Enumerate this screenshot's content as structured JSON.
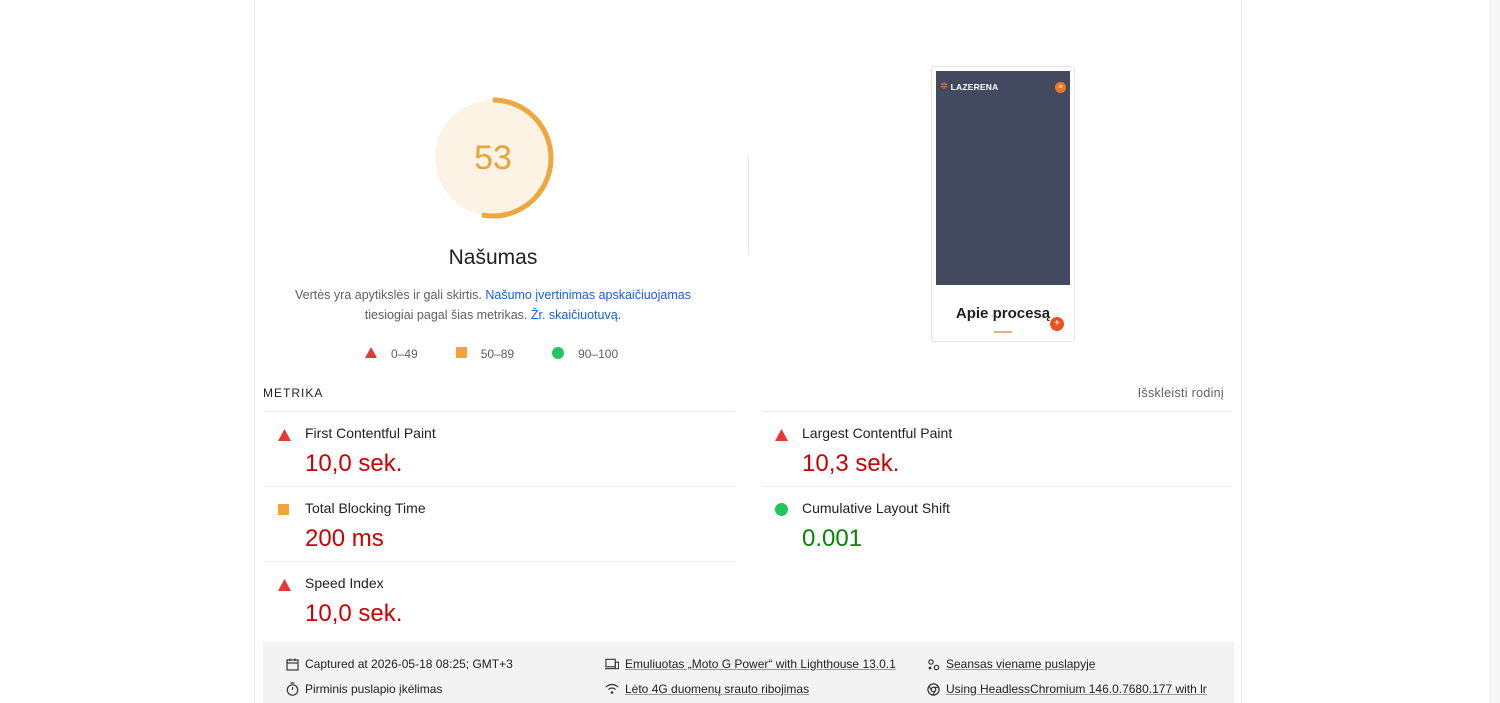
{
  "gauge": {
    "score": "53",
    "score_fraction": 0.53,
    "title": "Našumas",
    "desc_text": "Vertės yra apytikslės ir gali skirtis.",
    "desc_link1": "Našumo įvertinimas apskaičiuojamas",
    "desc_text2": "tiesiogiai pagal šias metrikas.",
    "desc_link2": "Žr. skaičiuotuvą.",
    "color": "#e8a33b",
    "bg_color": "#fdf3e4"
  },
  "legend": [
    {
      "icon": "red-triangle-icon",
      "label": "0–49",
      "color": "#e53935"
    },
    {
      "icon": "orange-square-icon",
      "label": "50–89",
      "color": "#f2a43a"
    },
    {
      "icon": "green-circle-icon",
      "label": "90–100",
      "color": "#22c55e"
    }
  ],
  "thumbnail": {
    "logo": "LAZERENA",
    "heading": "Apie procesą",
    "bg_color": "#434a5f",
    "accent": "#f0761f"
  },
  "metrics": {
    "header": "METRIKA",
    "toggle": "Išskleisti rodinį",
    "items": [
      {
        "name": "First Contentful Paint",
        "value": "10,0 sek.",
        "status": "fail"
      },
      {
        "name": "Largest Contentful Paint",
        "value": "10,3 sek.",
        "status": "fail"
      },
      {
        "name": "Total Blocking Time",
        "value": "200 ms",
        "status": "average"
      },
      {
        "name": "Cumulative Layout Shift",
        "value": "0.001",
        "status": "pass"
      },
      {
        "name": "Speed Index",
        "value": "10,0 sek.",
        "status": "fail"
      }
    ]
  },
  "env": {
    "captured": "Captured at 2026-05-18 08:25; GMT+3",
    "initial_load": "Pirminis puslapio įkėlimas",
    "emulated": "Emuliuotas „Moto G Power“ with Lighthouse 13.0.1",
    "throttling": "Lėto 4G duomenų srauto ribojimas",
    "session": "Seansas viename puslapyje",
    "browser": "Using HeadlessChromium 146.0.7680.177 with lr"
  },
  "colors": {
    "fail": "#c00",
    "average": "#c33300",
    "pass": "#080",
    "link": "#1a5fd6"
  }
}
